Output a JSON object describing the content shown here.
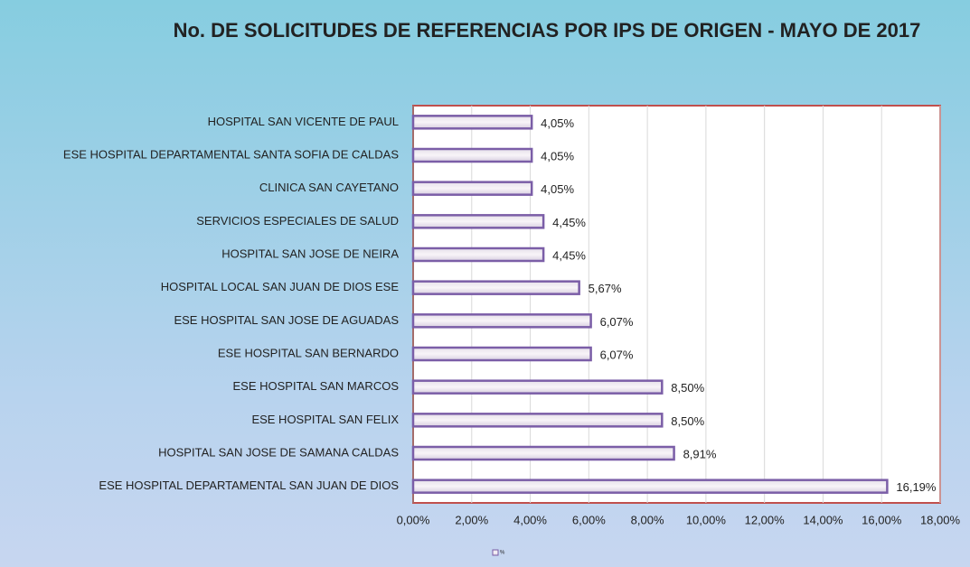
{
  "chart_data": {
    "type": "bar",
    "orientation": "horizontal",
    "title": "No. DE SOLICITUDES DE REFERENCIAS POR IPS DE ORIGEN -  MAYO DE 2017",
    "categories": [
      "HOSPITAL SAN VICENTE DE PAUL",
      "ESE HOSPITAL DEPARTAMENTAL SANTA SOFIA DE CALDAS",
      "CLINICA SAN CAYETANO",
      "SERVICIOS ESPECIALES DE SALUD",
      "HOSPITAL SAN JOSE  DE NEIRA",
      "HOSPITAL LOCAL SAN JUAN DE DIOS ESE",
      "ESE HOSPITAL SAN JOSE DE AGUADAS",
      "ESE HOSPITAL SAN BERNARDO",
      "ESE HOSPITAL SAN MARCOS",
      "ESE HOSPITAL SAN FELIX",
      "HOSPITAL SAN JOSE DE SAMANA CALDAS",
      "ESE HOSPITAL DEPARTAMENTAL SAN JUAN DE DIOS"
    ],
    "series": [
      {
        "name": "%",
        "color": "#7b5ea7",
        "values": [
          4.05,
          4.05,
          4.05,
          4.45,
          4.45,
          5.67,
          6.07,
          6.07,
          8.5,
          8.5,
          8.91,
          16.19
        ],
        "value_labels": [
          "4,05%",
          "4,05%",
          "4,05%",
          "4,45%",
          "4,45%",
          "5,67%",
          "6,07%",
          "6,07%",
          "8,50%",
          "8,50%",
          "8,91%",
          "16,19%"
        ]
      }
    ],
    "xlim": [
      0,
      18
    ],
    "xticks": [
      {
        "value": 0,
        "label": "0,00%"
      },
      {
        "value": 2,
        "label": "2,00%"
      },
      {
        "value": 4,
        "label": "4,00%"
      },
      {
        "value": 6,
        "label": "6,00%"
      },
      {
        "value": 8,
        "label": "8,00%"
      },
      {
        "value": 10,
        "label": "10,00%"
      },
      {
        "value": 12,
        "label": "12,00%"
      },
      {
        "value": 14,
        "label": "14,00%"
      },
      {
        "value": 16,
        "label": "16,00%"
      },
      {
        "value": 18,
        "label": "18,00%"
      }
    ],
    "grid": true,
    "legend": "bottom"
  }
}
